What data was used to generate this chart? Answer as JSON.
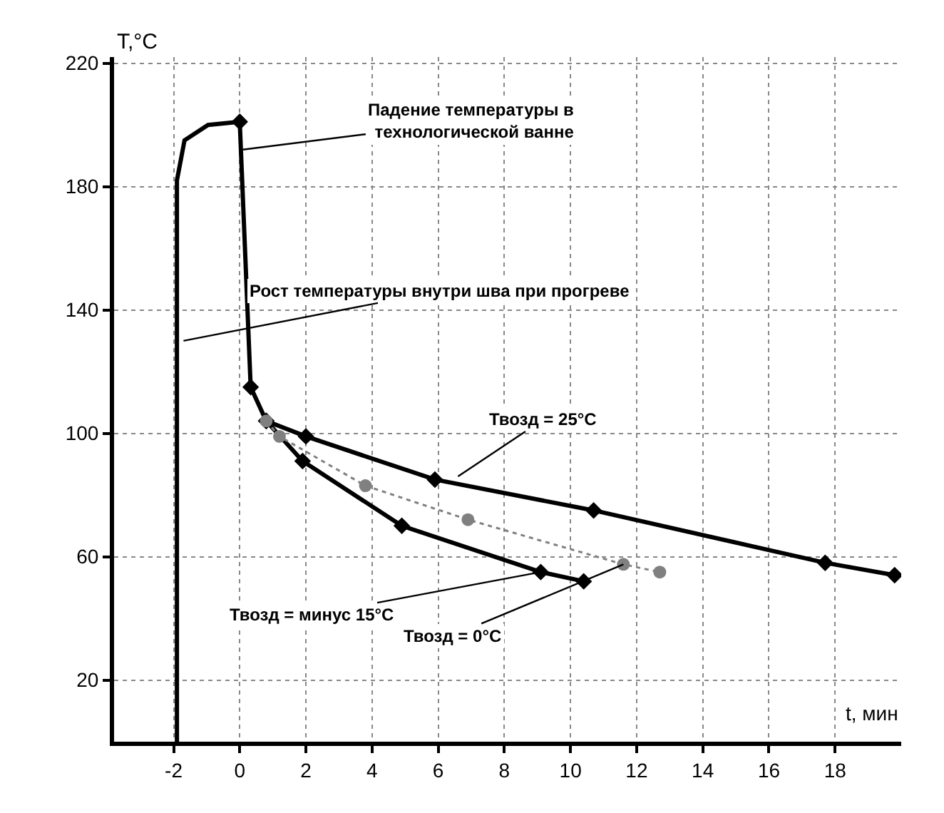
{
  "chart_data": {
    "type": "line",
    "xlabel": "t, мин",
    "ylabel": "T,°C",
    "xlim": [
      -3.8,
      20
    ],
    "ylim": [
      0,
      222
    ],
    "xticks": [
      -2,
      0,
      2,
      4,
      6,
      8,
      10,
      12,
      14,
      16,
      18
    ],
    "yticks": [
      20,
      60,
      100,
      140,
      180,
      220
    ],
    "grid": true,
    "series": [
      {
        "color": "#000000",
        "marker": "none",
        "line_style": "solid",
        "x": [
          -1.9,
          -1.9,
          -1.67,
          -0.96,
          0
        ],
        "values": [
          0,
          182,
          195,
          200,
          201
        ]
      },
      {
        "color": "#000000",
        "marker": "diamond",
        "line_style": "solid",
        "x": [
          0,
          0.33,
          0.8,
          2,
          5.9,
          10.7,
          17.7,
          19.8
        ],
        "values": [
          201,
          115,
          104,
          99,
          85,
          75,
          58,
          54
        ]
      },
      {
        "color": "#000000",
        "marker": "diamond",
        "line_style": "solid",
        "x": [
          0.8,
          1.9,
          4.9,
          9.1,
          10.4
        ],
        "values": [
          104,
          91,
          70,
          55,
          52
        ]
      },
      {
        "color": "#808080",
        "marker": "circle",
        "line_style": "dotted",
        "x": [
          0.8,
          1.2,
          3.8,
          6.9,
          11.6,
          12.7
        ],
        "values": [
          104,
          99,
          83,
          72,
          57.5,
          55
        ]
      }
    ],
    "annotations": [
      {
        "text": "Падение температуры в\nтехнологической ванне",
        "x": 0.1,
        "y": 192
      },
      {
        "text": "Рост температуры внутри шва при прогреве",
        "x": -1.7,
        "y": 130
      },
      {
        "text": "Твозд = 25°C",
        "x": 6.6,
        "y": 86
      },
      {
        "text": "Твозд = минус 15°C",
        "x": 9.1,
        "y": 55
      },
      {
        "text": "Твозд = 0°C",
        "x": 11.6,
        "y": 57.5
      }
    ]
  }
}
